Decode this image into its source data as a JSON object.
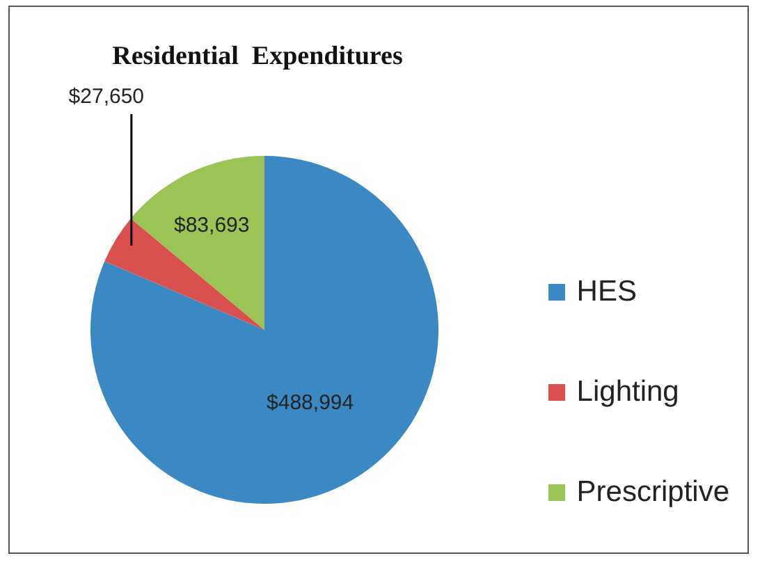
{
  "chart_data": {
    "type": "pie",
    "title": "Residential  Expenditures",
    "categories": [
      "HES",
      "Lighting",
      "Prescriptive"
    ],
    "values": [
      488994,
      27650,
      83693
    ],
    "colors": [
      "#3b88c3",
      "#d9514e",
      "#9cc356"
    ],
    "value_labels": [
      "$488,994",
      "$27,650",
      "$83,693"
    ],
    "legend": "right"
  }
}
